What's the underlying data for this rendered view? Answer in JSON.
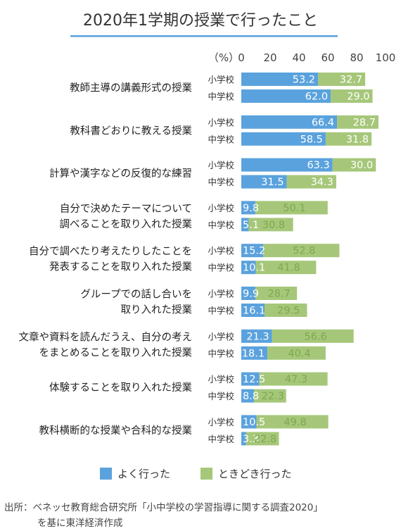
{
  "chart_data": {
    "type": "bar",
    "stacked": true,
    "orientation": "horizontal",
    "title": "2020年1学期の授業で行ったこと",
    "unit_label": "（%）",
    "xlim": [
      0,
      100
    ],
    "ticks": [
      0,
      20,
      40,
      60,
      80,
      100
    ],
    "colors": {
      "often": "#5aa2dd",
      "sometimes": "#a6c77a"
    },
    "legend": [
      {
        "key": "often",
        "label": "よく行った"
      },
      {
        "key": "sometimes",
        "label": "ときどき行った"
      }
    ],
    "school_labels": [
      "小学校",
      "中学校"
    ],
    "items": [
      {
        "label": [
          "教師主導の講義形式の授業"
        ],
        "rows": [
          {
            "often": 53.2,
            "sometimes": 32.7
          },
          {
            "often": 62.0,
            "sometimes": 29.0
          }
        ]
      },
      {
        "label": [
          "教科書どおりに教える授業"
        ],
        "rows": [
          {
            "often": 66.4,
            "sometimes": 28.7
          },
          {
            "often": 58.5,
            "sometimes": 31.8
          }
        ]
      },
      {
        "label": [
          "計算や漢字などの反復的な練習"
        ],
        "rows": [
          {
            "often": 63.3,
            "sometimes": 30.0
          },
          {
            "often": 31.5,
            "sometimes": 34.3
          }
        ]
      },
      {
        "label": [
          "自分で決めたテーマについて",
          "調べることを取り入れた授業"
        ],
        "rows": [
          {
            "often": 9.8,
            "sometimes": 50.1
          },
          {
            "often": 5.1,
            "sometimes": 30.8
          }
        ]
      },
      {
        "label": [
          "自分で調べたり考えたりしたことを",
          "発表することを取り入れた授業"
        ],
        "rows": [
          {
            "often": 15.2,
            "sometimes": 52.8
          },
          {
            "often": 10.1,
            "sometimes": 41.8
          }
        ]
      },
      {
        "label": [
          "グループでの話し合いを",
          "取り入れた授業"
        ],
        "rows": [
          {
            "often": 9.9,
            "sometimes": 28.7
          },
          {
            "often": 16.1,
            "sometimes": 29.5
          }
        ]
      },
      {
        "label": [
          "文章や資料を読んだうえ、自分の考え",
          "をまとめることを取り入れた授業"
        ],
        "rows": [
          {
            "often": 21.3,
            "sometimes": 56.6
          },
          {
            "often": 18.1,
            "sometimes": 40.4
          }
        ]
      },
      {
        "label": [
          "体験することを取り入れた授業"
        ],
        "rows": [
          {
            "often": 12.5,
            "sometimes": 47.3
          },
          {
            "often": 8.8,
            "sometimes": 22.3
          }
        ]
      },
      {
        "label": [
          "教科横断的な授業や合科的な授業"
        ],
        "rows": [
          {
            "often": 10.5,
            "sometimes": 49.8
          },
          {
            "often": 3.3,
            "sometimes": 22.8
          }
        ]
      }
    ],
    "source": [
      "出所：ベネッセ教育総合研究所「小中学校の学習指導に関する調査2020」",
      "を基に東洋経済作成"
    ]
  }
}
